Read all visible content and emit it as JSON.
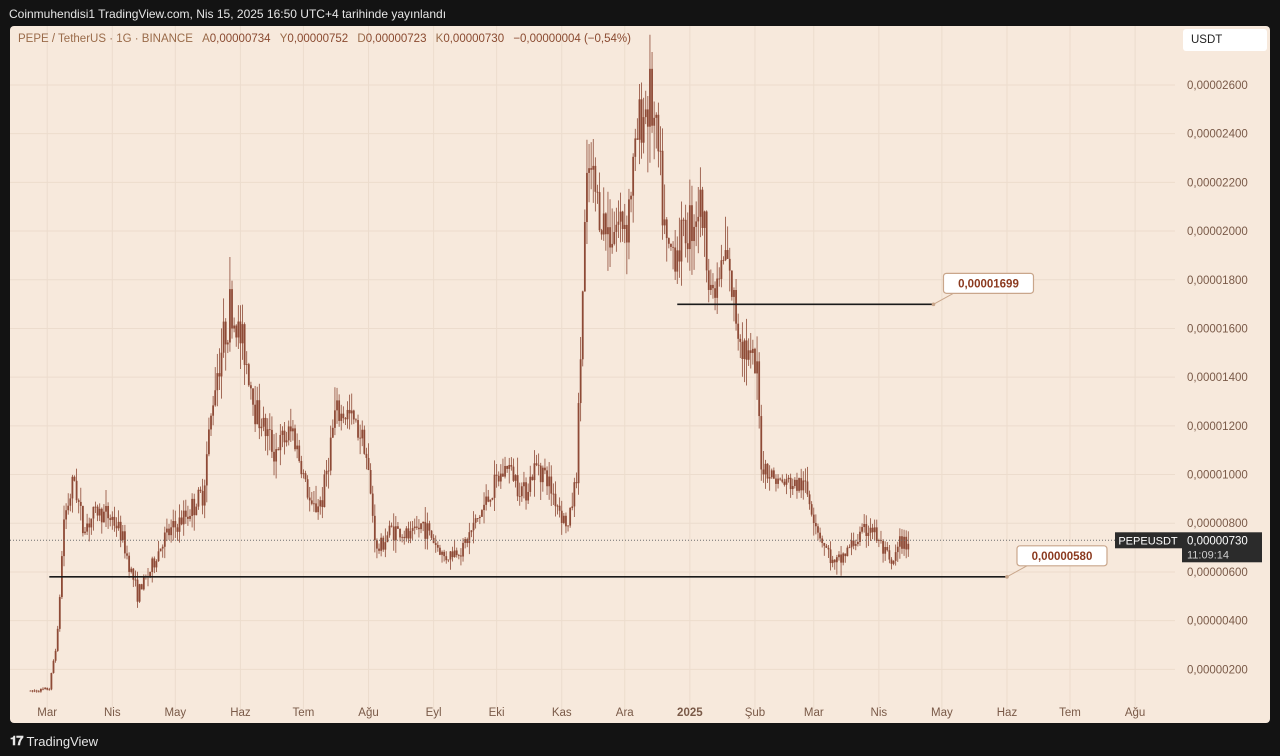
{
  "header": {
    "published_line": "Coinmuhendisi1 TradingView.com, Nis 15, 2025 16:50 UTC+4 tarihinde yayınlandı"
  },
  "legend": {
    "symbol": "PEPE / TetherUS · 1G · BINANCE",
    "open_label": "A",
    "open": "0,00000734",
    "high_label": "Y",
    "high": "0,00000752",
    "low_label": "D",
    "low": "0,00000723",
    "close_label": "K",
    "close": "0,00000730",
    "change": "−0,00000004 (−0,54%)"
  },
  "currency_label": "USDT",
  "footer": {
    "brand": "TradingView",
    "logo_icon": "tradingview-logo-icon"
  },
  "colors": {
    "background": "#f7e9dc",
    "candle": "#8e4a36",
    "grid": "#ecdccd",
    "axis_text": "#7a5a48",
    "line": "#1a1a1a",
    "label_border": "#c9a68b",
    "label_text": "#8b3a1f"
  },
  "chart_data": {
    "type": "candlestick",
    "symbol": "PEPEUSDT",
    "y_tick_labels": [
      "0,00000200",
      "0,00000400",
      "0,00000600",
      "0,00000800",
      "0,00001000",
      "0,00001200",
      "0,00001400",
      "0,00001600",
      "0,00001800",
      "0,00002000",
      "0,00002200",
      "0,00002400",
      "0,00002600"
    ],
    "y_tick_values": [
      2e-06,
      4e-06,
      6e-06,
      8e-06,
      1e-05,
      1.2e-05,
      1.4e-05,
      1.6e-05,
      1.8e-05,
      2e-05,
      2.2e-05,
      2.4e-05,
      2.6e-05
    ],
    "ylim": [
      7e-07,
      2.76e-05
    ],
    "x_tick_labels": [
      "Mar",
      "Nis",
      "May",
      "Haz",
      "Tem",
      "Ağu",
      "Eyl",
      "Eki",
      "Kas",
      "Ara",
      "2025",
      "Şub",
      "Mar",
      "Nis",
      "May",
      "Haz",
      "Tem",
      "Ağu"
    ],
    "x_tick_dates": [
      "2024-03-01",
      "2024-04-01",
      "2024-05-01",
      "2024-06-01",
      "2024-07-01",
      "2024-08-01",
      "2024-09-01",
      "2024-10-01",
      "2024-11-01",
      "2024-12-01",
      "2025-01-01",
      "2025-02-01",
      "2025-03-01",
      "2025-04-01",
      "2025-05-01",
      "2025-06-01",
      "2025-07-01",
      "2025-08-01"
    ],
    "x_range": [
      "2024-02-18",
      "2025-08-20"
    ],
    "price_path": [
      [
        "2024-02-22",
        1.1e-06
      ],
      [
        "2024-03-02",
        1.2e-06
      ],
      [
        "2024-03-06",
        3.5e-06
      ],
      [
        "2024-03-09",
        8.2e-06
      ],
      [
        "2024-03-14",
        9.8e-06
      ],
      [
        "2024-03-18",
        7.8e-06
      ],
      [
        "2024-03-25",
        8.5e-06
      ],
      [
        "2024-04-01",
        8.2e-06
      ],
      [
        "2024-04-05",
        7.6e-06
      ],
      [
        "2024-04-13",
        5.1e-06
      ],
      [
        "2024-04-20",
        6.2e-06
      ],
      [
        "2024-04-25",
        7.3e-06
      ],
      [
        "2024-05-05",
        8.2e-06
      ],
      [
        "2024-05-14",
        9.2e-06
      ],
      [
        "2024-05-20",
        1.39e-05
      ],
      [
        "2024-05-27",
        1.68e-05
      ],
      [
        "2024-06-03",
        1.51e-05
      ],
      [
        "2024-06-08",
        1.28e-05
      ],
      [
        "2024-06-17",
        1.1e-05
      ],
      [
        "2024-06-26",
        1.18e-05
      ],
      [
        "2024-07-05",
        8.5e-06
      ],
      [
        "2024-07-10",
        9e-06
      ],
      [
        "2024-07-16",
        1.24e-05
      ],
      [
        "2024-07-22",
        1.25e-05
      ],
      [
        "2024-07-30",
        1.15e-05
      ],
      [
        "2024-08-05",
        6.8e-06
      ],
      [
        "2024-08-12",
        7.8e-06
      ],
      [
        "2024-08-21",
        7.4e-06
      ],
      [
        "2024-08-27",
        8e-06
      ],
      [
        "2024-09-06",
        6.6e-06
      ],
      [
        "2024-09-15",
        7e-06
      ],
      [
        "2024-09-28",
        9.2e-06
      ],
      [
        "2024-10-06",
        1.04e-05
      ],
      [
        "2024-10-14",
        9.3e-06
      ],
      [
        "2024-10-21",
        1.05e-05
      ],
      [
        "2024-10-27",
        9.4e-06
      ],
      [
        "2024-11-04",
        7.8e-06
      ],
      [
        "2024-11-08",
        1e-05
      ],
      [
        "2024-11-12",
        2e-05
      ],
      [
        "2024-11-14",
        2.25e-05
      ],
      [
        "2024-11-22",
        2e-05
      ],
      [
        "2024-12-02",
        2.05e-05
      ],
      [
        "2024-12-08",
        2.45e-05
      ],
      [
        "2024-12-13",
        2.55e-05
      ],
      [
        "2024-12-17",
        2.3e-05
      ],
      [
        "2024-12-21",
        1.9e-05
      ],
      [
        "2024-12-27",
        1.95e-05
      ],
      [
        "2025-01-06",
        2.12e-05
      ],
      [
        "2025-01-12",
        1.72e-05
      ],
      [
        "2025-01-18",
        1.9e-05
      ],
      [
        "2025-01-24",
        1.6e-05
      ],
      [
        "2025-02-02",
        1.4e-05
      ],
      [
        "2025-02-04",
        1.05e-05
      ],
      [
        "2025-02-12",
        9.7e-06
      ],
      [
        "2025-02-25",
        9.5e-06
      ],
      [
        "2025-03-04",
        7.5e-06
      ],
      [
        "2025-03-11",
        6.2e-06
      ],
      [
        "2025-03-18",
        7e-06
      ],
      [
        "2025-03-28",
        7.9e-06
      ],
      [
        "2025-04-07",
        6.2e-06
      ],
      [
        "2025-04-11",
        7.1e-06
      ],
      [
        "2025-04-15",
        7.3e-06
      ]
    ],
    "horizontal_lines": [
      {
        "value": 1.699e-05,
        "label": "0,00001699",
        "from": "2024-12-26",
        "to": "2025-04-27"
      },
      {
        "value": 5.8e-06,
        "label": "0,00000580",
        "from": "2024-03-02",
        "to": "2025-06-01"
      }
    ],
    "last_price": {
      "label": "PEPEUSDT",
      "value": 7.3e-06,
      "value_text": "0,00000730",
      "countdown": "11:09:14"
    }
  }
}
